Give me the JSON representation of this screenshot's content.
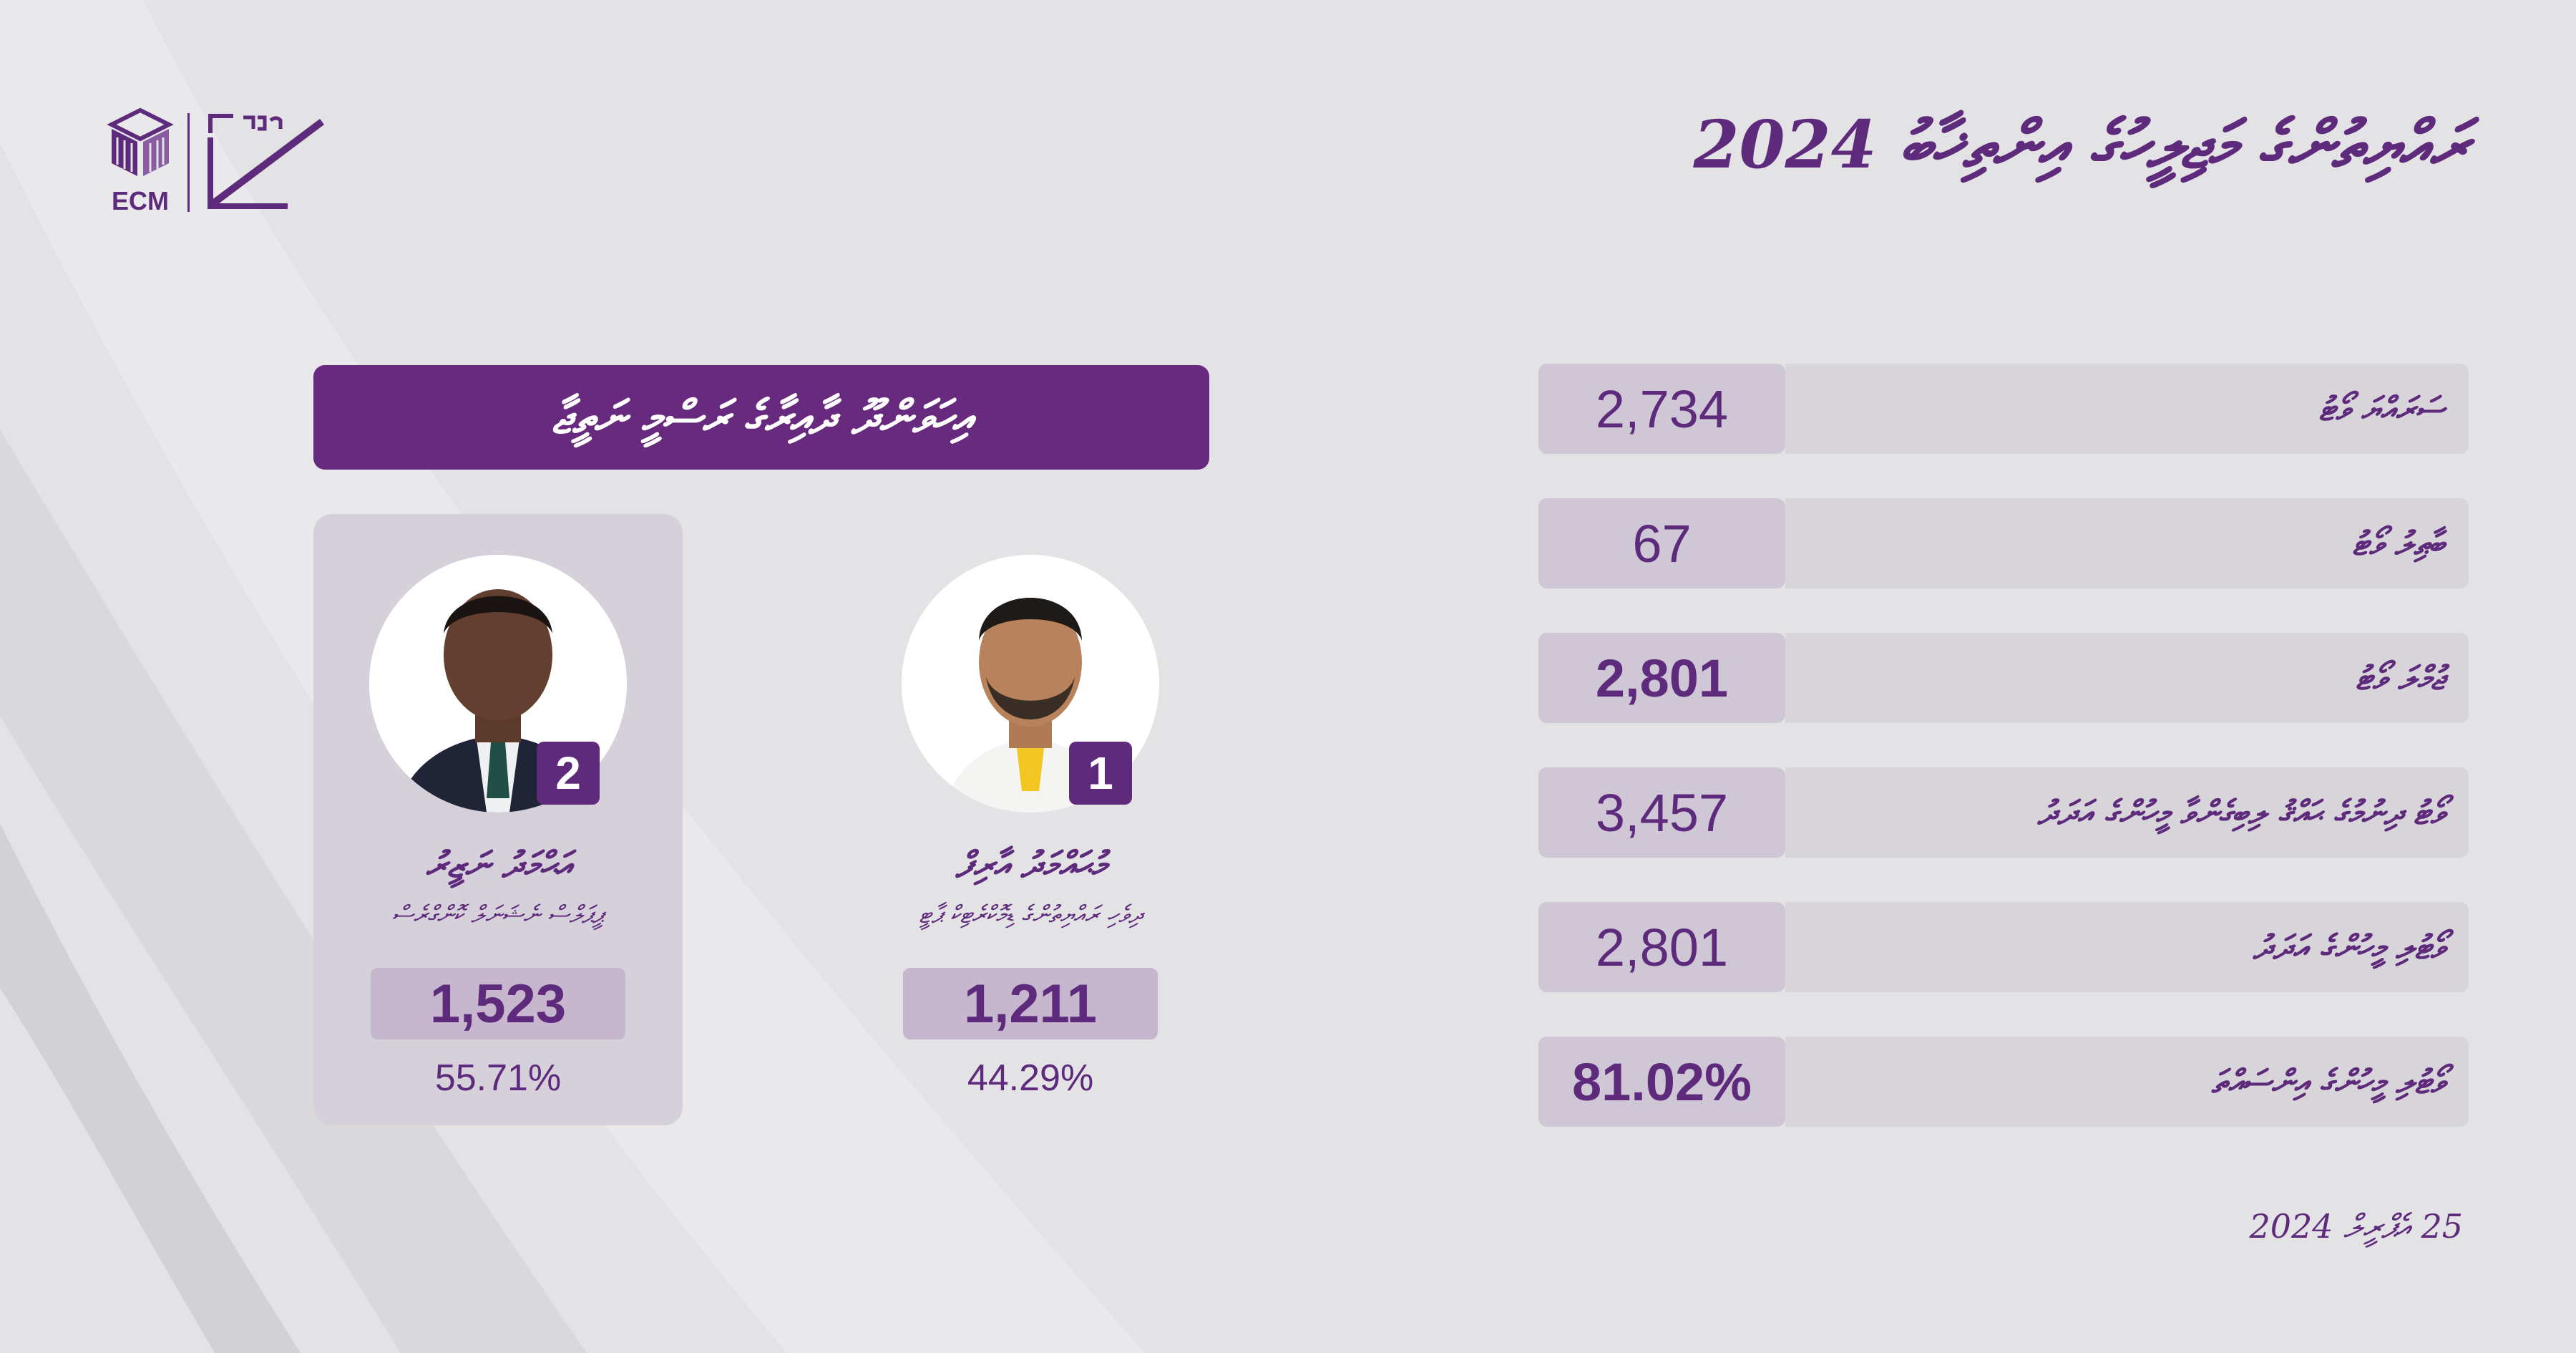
{
  "header": {
    "title": "ރައްޔިތުންގެ މަޖިލީހުގެ އިންތިޚާބު 2024",
    "logo_text": "ECM",
    "colors": {
      "brand": "#5e2a7c",
      "header_bar": "#672a7e",
      "background": "#e3e2e4"
    }
  },
  "stats": [
    {
      "label": "ސަރައްޔަ ވޯޓު",
      "value": "2,734",
      "bold": false
    },
    {
      "label": "ބާޠިލު ވޯޓު",
      "value": "67",
      "bold": false
    },
    {
      "label": "ޖުމްލަ ވޯޓު",
      "value": "2,801",
      "bold": true
    },
    {
      "label": "ވޯޓު ދިނުމުގެ ޙައްޤު ލިބިގެންވާ މީހުންގެ އަދަދު",
      "value": "3,457",
      "bold": false
    },
    {
      "label": "ވޯޓުލި މީހުންގެ އަދަދު",
      "value": "2,801",
      "bold": false
    },
    {
      "label": "ވޯޓުލި މީހުންގެ އިންސައްތަ",
      "value": "81.02%",
      "bold": true
    }
  ],
  "results": {
    "title": "އިހަވަންދޫ ދާއިރާގެ ރަސްމީ ނަތީޖާ",
    "candidates": [
      {
        "number": "1",
        "name": "މުޙައްމަދު އާރިފް",
        "party": "ދިވެހި ރައްޔިތުންގެ ޑިމޮކްރެޓިކް ޕާޓީ",
        "votes": "1,211",
        "percent": "44.29%",
        "winner": false
      },
      {
        "number": "2",
        "name": "އަޙްމަދު ނަޒީރު",
        "party": "ޕީޕަލްސް ނެޝަނަލް ކޮންގްރެސް",
        "votes": "1,523",
        "percent": "55.71%",
        "winner": true
      }
    ]
  },
  "footer": {
    "date": "25 އެޕްރީލް 2024"
  }
}
